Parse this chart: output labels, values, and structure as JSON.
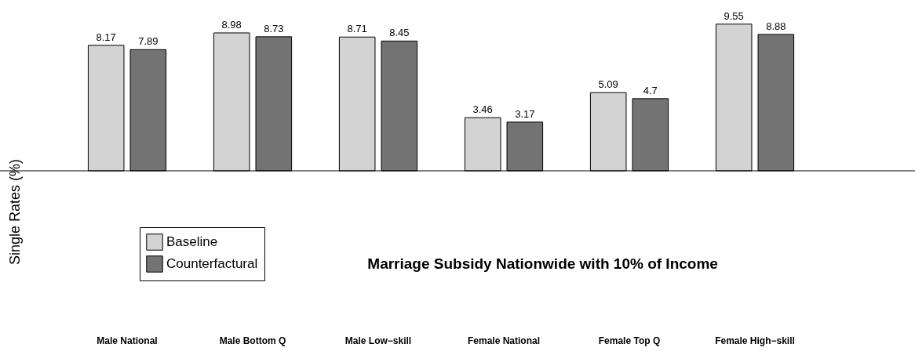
{
  "chart_data": {
    "type": "bar",
    "title": "Marriage Subsidy Nationwide with 10% of Income",
    "ylabel": "Single Rates (%)",
    "categories": [
      "Male National",
      "Male Bottom Q",
      "Male Low−skill",
      "Female National",
      "Female Top Q",
      "Female High−skill"
    ],
    "series": [
      {
        "name": "Baseline",
        "color": "#d3d3d3",
        "values": [
          8.17,
          8.98,
          8.71,
          3.46,
          5.09,
          9.55
        ]
      },
      {
        "name": "Counterfactural",
        "color": "#737373",
        "values": [
          7.89,
          8.73,
          8.45,
          3.17,
          4.7,
          8.88
        ]
      }
    ],
    "tick_labels": "x",
    "data_labels": true,
    "legend": "bottom left",
    "ref_lines": [
      {
        "axis": "y",
        "value": 0
      }
    ]
  }
}
